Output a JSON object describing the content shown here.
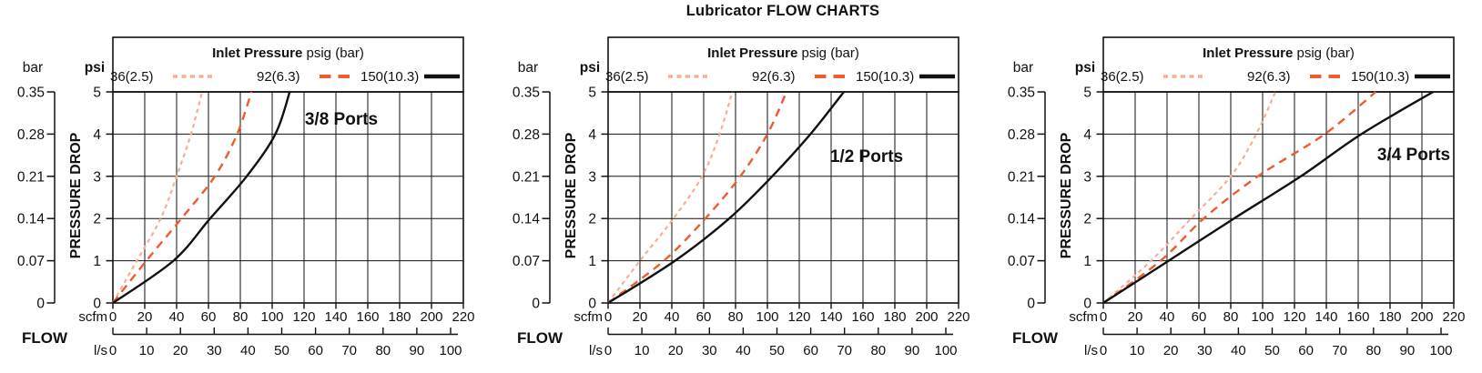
{
  "title": "Lubricator FLOW CHARTS",
  "legend": {
    "title_bold": "Inlet Pressure",
    "title_rest": " psig (bar)",
    "entries": [
      {
        "label": "36(2.5)",
        "line_style": "dotted",
        "color": "#f7ae94"
      },
      {
        "label": "92(6.3)",
        "line_style": "dashed",
        "color": "#ee5b30"
      },
      {
        "label": "150(10.3)",
        "line_style": "solid",
        "color": "#111111"
      }
    ]
  },
  "axes": {
    "pressure_label": "PRESSURE DROP",
    "flow_label": "FLOW",
    "bar_unit": "bar",
    "psi_unit": "psi",
    "bar_ticks": [
      "0.35",
      "0.28",
      "0.21",
      "0.14",
      "0.07",
      "0"
    ],
    "psi_ticks": [
      "5",
      "4",
      "3",
      "2",
      "1",
      "0"
    ],
    "scfm_unit": "scfm",
    "scfm_ticks": [
      "0",
      "20",
      "40",
      "60",
      "80",
      "100",
      "120",
      "140",
      "160",
      "180",
      "200",
      "220"
    ],
    "lps_unit": "l/s",
    "lps_ticks": [
      "0",
      "10",
      "20",
      "30",
      "40",
      "50",
      "60",
      "70",
      "80",
      "90",
      "100"
    ],
    "scfm_range": [
      0,
      220
    ],
    "psi_range": [
      0,
      5
    ],
    "bar_range": [
      0,
      0.35
    ]
  },
  "chart_data": [
    {
      "type": "line",
      "port_label": "3/8 Ports",
      "xlabel": "Flow (scfm)",
      "ylabel": "Pressure drop (psi)",
      "pressure_drop_psi": [
        0,
        1,
        2,
        3,
        4,
        5
      ],
      "series": [
        {
          "name": "36(2.5)",
          "flow_scfm": [
            0,
            15,
            30,
            40,
            49,
            56
          ]
        },
        {
          "name": "92(6.3)",
          "flow_scfm": [
            0,
            21,
            43,
            64,
            78,
            87
          ]
        },
        {
          "name": "150(10.3)",
          "flow_scfm": [
            0,
            38,
            61,
            84,
            102,
            111
          ]
        }
      ]
    },
    {
      "type": "line",
      "port_label": "1/2 Ports",
      "xlabel": "Flow (scfm)",
      "ylabel": "Pressure drop (psi)",
      "pressure_drop_psi": [
        0,
        1,
        2,
        3,
        4,
        5
      ],
      "series": [
        {
          "name": "36(2.5)",
          "flow_scfm": [
            0,
            20,
            41,
            59,
            70,
            78
          ]
        },
        {
          "name": "92(6.3)",
          "flow_scfm": [
            0,
            35,
            61,
            83,
            100,
            112
          ]
        },
        {
          "name": "150(10.3)",
          "flow_scfm": [
            0,
            42,
            76,
            103,
            127,
            148
          ]
        }
      ]
    },
    {
      "type": "line",
      "port_label": "3/4 Ports",
      "xlabel": "Flow (scfm)",
      "ylabel": "Pressure drop (psi)",
      "pressure_drop_psi": [
        0,
        1,
        2,
        3,
        4,
        5
      ],
      "series": [
        {
          "name": "36(2.5)",
          "flow_scfm": [
            0,
            30,
            55,
            80,
            96,
            108
          ]
        },
        {
          "name": "92(6.3)",
          "flow_scfm": [
            0,
            36,
            63,
            97,
            139,
            171
          ]
        },
        {
          "name": "150(10.3)",
          "flow_scfm": [
            0,
            41,
            82,
            124,
            162,
            207
          ]
        }
      ]
    }
  ]
}
